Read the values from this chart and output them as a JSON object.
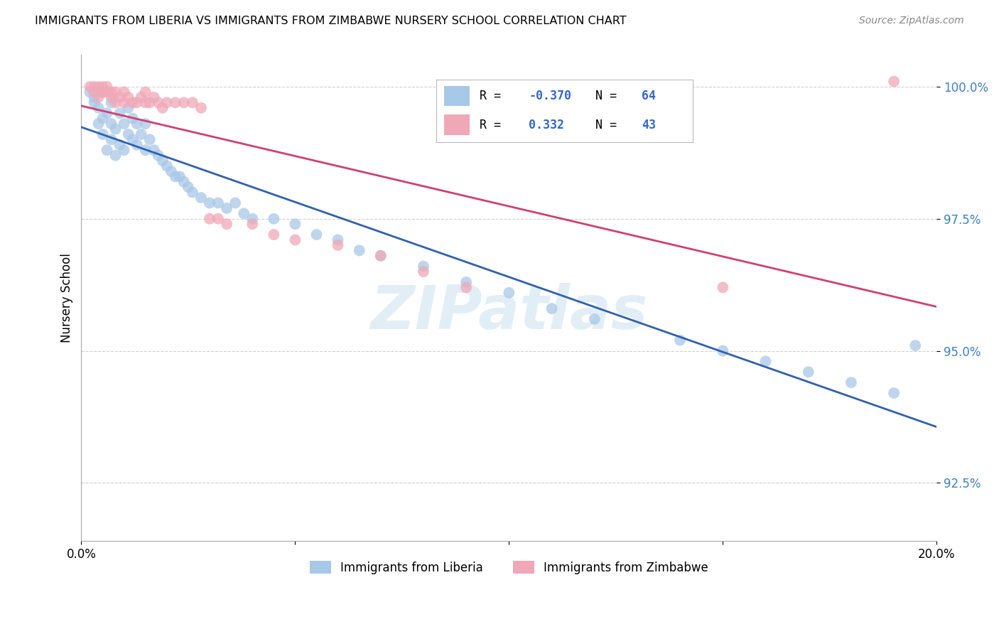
{
  "title": "IMMIGRANTS FROM LIBERIA VS IMMIGRANTS FROM ZIMBABWE NURSERY SCHOOL CORRELATION CHART",
  "source": "Source: ZipAtlas.com",
  "ylabel": "Nursery School",
  "xlim": [
    0.0,
    0.2
  ],
  "ylim": [
    0.914,
    1.006
  ],
  "yticks": [
    0.925,
    0.95,
    0.975,
    1.0
  ],
  "ytick_labels": [
    "92.5%",
    "95.0%",
    "97.5%",
    "100.0%"
  ],
  "xticks": [
    0.0,
    0.05,
    0.1,
    0.15,
    0.2
  ],
  "xtick_labels": [
    "0.0%",
    "",
    "",
    "",
    "20.0%"
  ],
  "legend_label1": "Immigrants from Liberia",
  "legend_label2": "Immigrants from Zimbabwe",
  "R_liberia": -0.37,
  "N_liberia": 64,
  "R_zimbabwe": 0.332,
  "N_zimbabwe": 43,
  "blue_color": "#a8c8e8",
  "pink_color": "#f0a8b8",
  "blue_line_color": "#3060b0",
  "pink_line_color": "#d04070",
  "watermark_text": "ZIPatlas",
  "liberia_x": [
    0.002,
    0.003,
    0.003,
    0.004,
    0.004,
    0.005,
    0.005,
    0.005,
    0.006,
    0.006,
    0.007,
    0.007,
    0.007,
    0.008,
    0.008,
    0.009,
    0.009,
    0.01,
    0.01,
    0.011,
    0.011,
    0.012,
    0.012,
    0.013,
    0.013,
    0.014,
    0.015,
    0.015,
    0.016,
    0.017,
    0.018,
    0.019,
    0.02,
    0.021,
    0.022,
    0.023,
    0.024,
    0.025,
    0.026,
    0.028,
    0.03,
    0.032,
    0.034,
    0.036,
    0.038,
    0.04,
    0.045,
    0.05,
    0.055,
    0.06,
    0.065,
    0.07,
    0.08,
    0.09,
    0.1,
    0.11,
    0.12,
    0.14,
    0.15,
    0.16,
    0.17,
    0.18,
    0.19,
    0.195
  ],
  "liberia_y": [
    0.999,
    0.997,
    0.998,
    0.993,
    0.996,
    0.991,
    0.994,
    0.999,
    0.988,
    0.995,
    0.99,
    0.993,
    0.997,
    0.987,
    0.992,
    0.989,
    0.995,
    0.988,
    0.993,
    0.991,
    0.996,
    0.99,
    0.994,
    0.989,
    0.993,
    0.991,
    0.988,
    0.993,
    0.99,
    0.988,
    0.987,
    0.986,
    0.985,
    0.984,
    0.983,
    0.983,
    0.982,
    0.981,
    0.98,
    0.979,
    0.978,
    0.978,
    0.977,
    0.978,
    0.976,
    0.975,
    0.975,
    0.974,
    0.972,
    0.971,
    0.969,
    0.968,
    0.966,
    0.963,
    0.961,
    0.958,
    0.956,
    0.952,
    0.95,
    0.948,
    0.946,
    0.944,
    0.942,
    0.951
  ],
  "zimbabwe_x": [
    0.002,
    0.003,
    0.003,
    0.004,
    0.004,
    0.005,
    0.005,
    0.006,
    0.006,
    0.007,
    0.007,
    0.008,
    0.008,
    0.009,
    0.01,
    0.01,
    0.011,
    0.012,
    0.013,
    0.014,
    0.015,
    0.015,
    0.016,
    0.017,
    0.018,
    0.019,
    0.02,
    0.022,
    0.024,
    0.026,
    0.028,
    0.03,
    0.032,
    0.034,
    0.04,
    0.045,
    0.05,
    0.06,
    0.07,
    0.08,
    0.09,
    0.15,
    0.19
  ],
  "zimbabwe_y": [
    1.0,
    1.0,
    0.999,
    1.0,
    0.998,
    0.999,
    1.0,
    0.999,
    1.0,
    0.999,
    0.998,
    0.999,
    0.997,
    0.998,
    0.997,
    0.999,
    0.998,
    0.997,
    0.997,
    0.998,
    0.997,
    0.999,
    0.997,
    0.998,
    0.997,
    0.996,
    0.997,
    0.997,
    0.997,
    0.997,
    0.996,
    0.975,
    0.975,
    0.974,
    0.974,
    0.972,
    0.971,
    0.97,
    0.968,
    0.965,
    0.962,
    0.962,
    1.001
  ]
}
